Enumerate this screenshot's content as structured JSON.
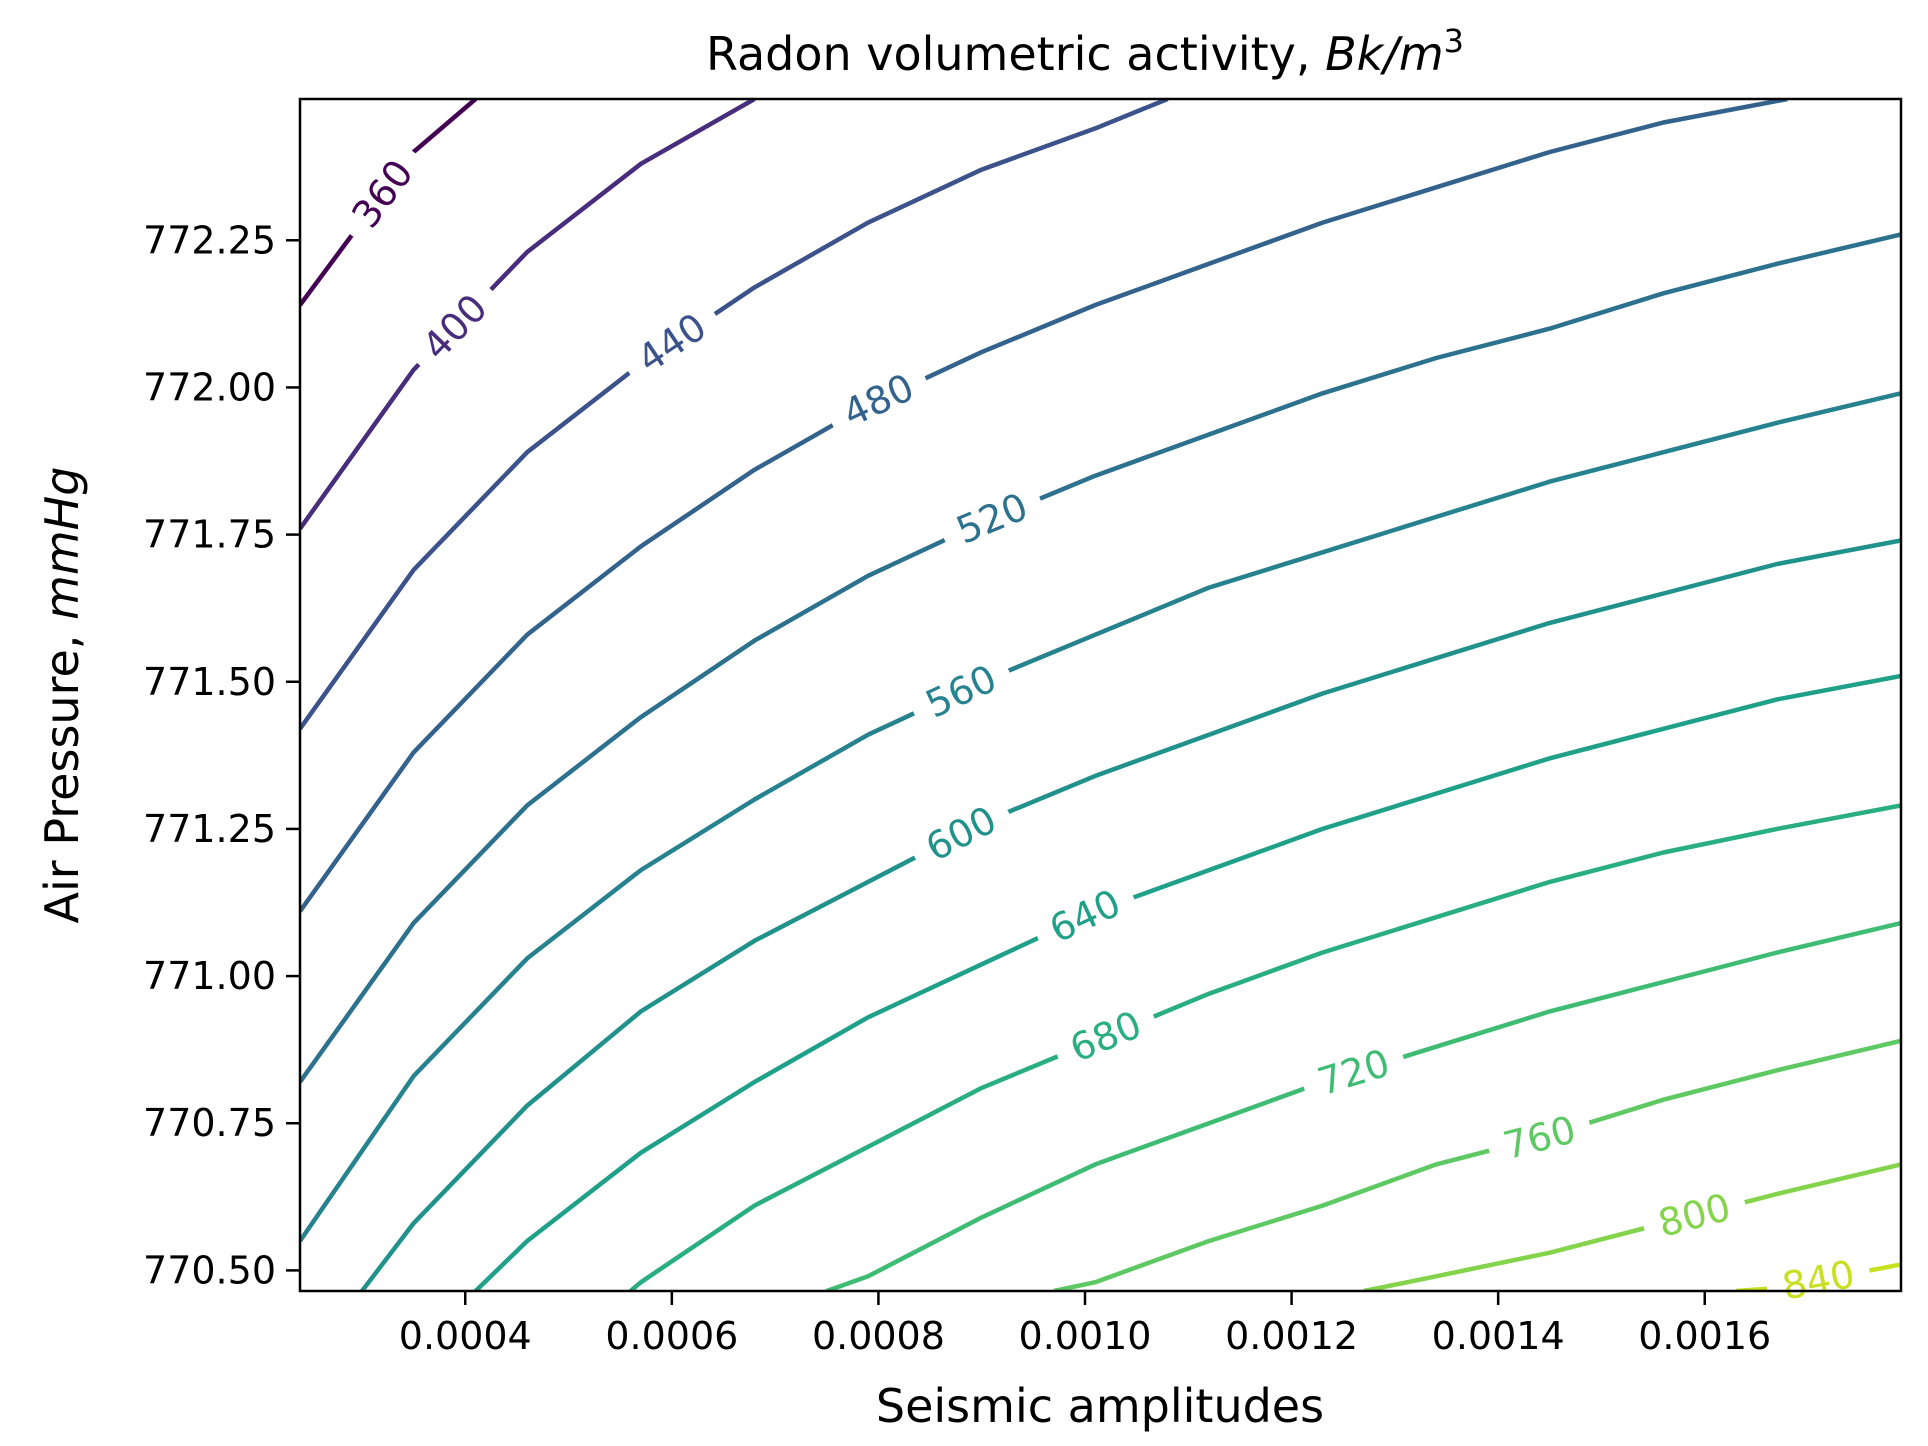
{
  "chart_data": {
    "type": "contour",
    "title": {
      "prefix": "Radon volumetric activity, ",
      "unit_base": "Bk/m",
      "unit_exponent": "3"
    },
    "xlabel": "Seismic amplitudes",
    "ylabel": {
      "prefix": "Air Pressure, ",
      "unit": "mmHg"
    },
    "xlim": [
      0.00024,
      0.00179
    ],
    "ylim": [
      770.465,
      772.49
    ],
    "x_ticks": [
      0.0004,
      0.0006,
      0.0008,
      0.001,
      0.0012,
      0.0014,
      0.0016
    ],
    "x_tick_labels": [
      "0.0004",
      "0.0006",
      "0.0008",
      "0.0010",
      "0.0012",
      "0.0014",
      "0.0016"
    ],
    "y_ticks": [
      770.5,
      770.75,
      771.0,
      771.25,
      771.5,
      771.75,
      772.0,
      772.25
    ],
    "y_tick_labels": [
      "770.50",
      "770.75",
      "771.00",
      "771.25",
      "771.50",
      "771.75",
      "772.00",
      "772.25"
    ],
    "grid": false,
    "colormap": "viridis",
    "contours": [
      {
        "level": 360,
        "label": "360",
        "color": "#440154",
        "label_at": 0.00032,
        "points": [
          [
            0.00024,
            772.14
          ],
          [
            0.00035,
            772.4
          ],
          [
            0.00041,
            772.49
          ]
        ]
      },
      {
        "level": 400,
        "label": "400",
        "color": "#472d7b",
        "label_at": 0.00039,
        "points": [
          [
            0.00024,
            771.76
          ],
          [
            0.00035,
            772.03
          ],
          [
            0.00046,
            772.23
          ],
          [
            0.00057,
            772.38
          ],
          [
            0.00068,
            772.49
          ]
        ]
      },
      {
        "level": 440,
        "label": "440",
        "color": "#3b528b",
        "label_at": 0.0006,
        "points": [
          [
            0.00024,
            771.42
          ],
          [
            0.00035,
            771.69
          ],
          [
            0.00046,
            771.89
          ],
          [
            0.00057,
            772.04
          ],
          [
            0.00068,
            772.17
          ],
          [
            0.00079,
            772.28
          ],
          [
            0.0009,
            772.37
          ],
          [
            0.00101,
            772.44
          ],
          [
            0.00108,
            772.49
          ]
        ]
      },
      {
        "level": 480,
        "label": "480",
        "color": "#33638d",
        "label_at": 0.0008,
        "points": [
          [
            0.00024,
            771.11
          ],
          [
            0.00035,
            771.38
          ],
          [
            0.00046,
            771.58
          ],
          [
            0.00057,
            771.73
          ],
          [
            0.00068,
            771.86
          ],
          [
            0.00079,
            771.97
          ],
          [
            0.0009,
            772.06
          ],
          [
            0.00101,
            772.14
          ],
          [
            0.00112,
            772.21
          ],
          [
            0.00123,
            772.28
          ],
          [
            0.00134,
            772.34
          ],
          [
            0.00145,
            772.4
          ],
          [
            0.00156,
            772.45
          ],
          [
            0.00168,
            772.49
          ]
        ]
      },
      {
        "level": 520,
        "label": "520",
        "color": "#2c728e",
        "label_at": 0.00091,
        "points": [
          [
            0.00024,
            770.82
          ],
          [
            0.00035,
            771.09
          ],
          [
            0.00046,
            771.29
          ],
          [
            0.00057,
            771.44
          ],
          [
            0.00068,
            771.57
          ],
          [
            0.00079,
            771.68
          ],
          [
            0.0009,
            771.77
          ],
          [
            0.00101,
            771.85
          ],
          [
            0.00112,
            771.92
          ],
          [
            0.00123,
            771.99
          ],
          [
            0.00134,
            772.05
          ],
          [
            0.00145,
            772.1
          ],
          [
            0.00156,
            772.16
          ],
          [
            0.00167,
            772.21
          ],
          [
            0.00179,
            772.26
          ]
        ]
      },
      {
        "level": 560,
        "label": "560",
        "color": "#26828e",
        "label_at": 0.00088,
        "points": [
          [
            0.00024,
            770.55
          ],
          [
            0.00035,
            770.83
          ],
          [
            0.00046,
            771.03
          ],
          [
            0.00057,
            771.18
          ],
          [
            0.00068,
            771.3
          ],
          [
            0.00079,
            771.41
          ],
          [
            0.0009,
            771.5
          ],
          [
            0.00101,
            771.58
          ],
          [
            0.00112,
            771.66
          ],
          [
            0.00123,
            771.72
          ],
          [
            0.00134,
            771.78
          ],
          [
            0.00145,
            771.84
          ],
          [
            0.00156,
            771.89
          ],
          [
            0.00167,
            771.94
          ],
          [
            0.00179,
            771.99
          ]
        ]
      },
      {
        "level": 600,
        "label": "600",
        "color": "#21918c",
        "label_at": 0.00088,
        "points": [
          [
            0.0003,
            770.465
          ],
          [
            0.00035,
            770.58
          ],
          [
            0.00046,
            770.78
          ],
          [
            0.00057,
            770.94
          ],
          [
            0.00068,
            771.06
          ],
          [
            0.00079,
            771.16
          ],
          [
            0.0009,
            771.26
          ],
          [
            0.00101,
            771.34
          ],
          [
            0.00112,
            771.41
          ],
          [
            0.00123,
            771.48
          ],
          [
            0.00134,
            771.54
          ],
          [
            0.00145,
            771.6
          ],
          [
            0.00156,
            771.65
          ],
          [
            0.00167,
            771.7
          ],
          [
            0.00179,
            771.74
          ]
        ]
      },
      {
        "level": 640,
        "label": "640",
        "color": "#1fa088",
        "label_at": 0.001,
        "points": [
          [
            0.00041,
            770.465
          ],
          [
            0.00046,
            770.55
          ],
          [
            0.00057,
            770.7
          ],
          [
            0.00068,
            770.82
          ],
          [
            0.00079,
            770.93
          ],
          [
            0.0009,
            771.02
          ],
          [
            0.00101,
            771.11
          ],
          [
            0.00112,
            771.18
          ],
          [
            0.00123,
            771.25
          ],
          [
            0.00134,
            771.31
          ],
          [
            0.00145,
            771.37
          ],
          [
            0.00156,
            771.42
          ],
          [
            0.00167,
            771.47
          ],
          [
            0.00179,
            771.51
          ]
        ]
      },
      {
        "level": 680,
        "label": "680",
        "color": "#28ae80",
        "label_at": 0.00102,
        "points": [
          [
            0.00056,
            770.465
          ],
          [
            0.00057,
            770.48
          ],
          [
            0.00068,
            770.61
          ],
          [
            0.00079,
            770.71
          ],
          [
            0.0009,
            770.81
          ],
          [
            0.00101,
            770.89
          ],
          [
            0.00112,
            770.97
          ],
          [
            0.00123,
            771.04
          ],
          [
            0.00134,
            771.1
          ],
          [
            0.00145,
            771.16
          ],
          [
            0.00156,
            771.21
          ],
          [
            0.00167,
            771.25
          ],
          [
            0.00179,
            771.29
          ]
        ]
      },
      {
        "level": 720,
        "label": "720",
        "color": "#3fbc73",
        "label_at": 0.00126,
        "points": [
          [
            0.00075,
            770.465
          ],
          [
            0.00079,
            770.49
          ],
          [
            0.0009,
            770.59
          ],
          [
            0.00101,
            770.68
          ],
          [
            0.00112,
            770.75
          ],
          [
            0.00123,
            770.82
          ],
          [
            0.00134,
            770.88
          ],
          [
            0.00145,
            770.94
          ],
          [
            0.00156,
            770.99
          ],
          [
            0.00167,
            771.04
          ],
          [
            0.00179,
            771.09
          ]
        ]
      },
      {
        "level": 760,
        "label": "760",
        "color": "#5ec962",
        "label_at": 0.00144,
        "points": [
          [
            0.00097,
            770.465
          ],
          [
            0.00101,
            770.48
          ],
          [
            0.00112,
            770.55
          ],
          [
            0.00123,
            770.61
          ],
          [
            0.00134,
            770.68
          ],
          [
            0.00145,
            770.73
          ],
          [
            0.00156,
            770.79
          ],
          [
            0.00167,
            770.84
          ],
          [
            0.00179,
            770.89
          ]
        ]
      },
      {
        "level": 800,
        "label": "800",
        "color": "#84d44b",
        "label_at": 0.00159,
        "points": [
          [
            0.00127,
            770.465
          ],
          [
            0.00134,
            770.49
          ],
          [
            0.00145,
            770.53
          ],
          [
            0.00156,
            770.58
          ],
          [
            0.00167,
            770.63
          ],
          [
            0.00179,
            770.68
          ]
        ]
      },
      {
        "level": 840,
        "label": "840",
        "color": "#c8e020",
        "label_at": 0.00171,
        "points": [
          [
            0.00163,
            770.465
          ],
          [
            0.00167,
            770.47
          ],
          [
            0.00179,
            770.51
          ]
        ]
      }
    ]
  }
}
